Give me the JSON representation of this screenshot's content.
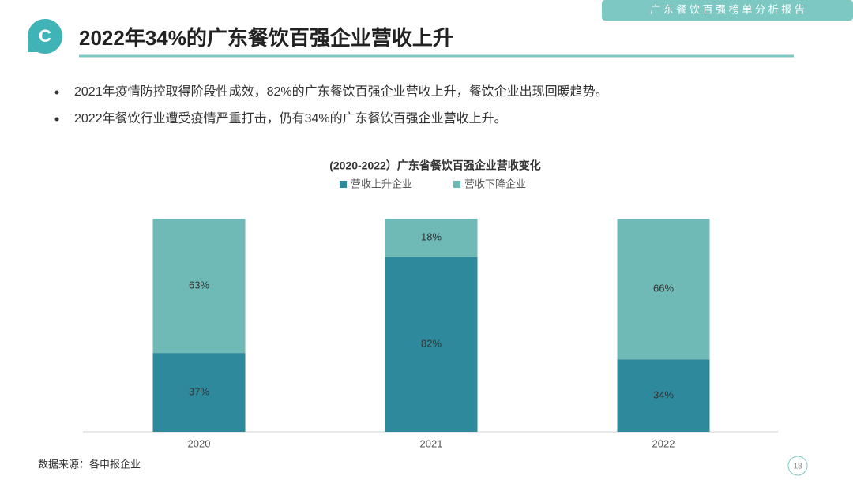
{
  "header": {
    "tag": "广 东 餐 饮 百 强 榜 单 分 析 报 告",
    "logo": "C",
    "title": "2022年34%的广东餐饮百强企业营收上升"
  },
  "bullets": [
    "2021年疫情防控取得阶段性成效，82%的广东餐饮百强企业营收上升，餐饮企业出现回暖趋势。",
    "2022年餐饮行业遭受疫情严重打击，仍有34%的广东餐饮百强企业营收上升。"
  ],
  "chart_data": {
    "type": "stacked_bar",
    "title": "(2020-2022）广东省餐饮百强企业营收变化",
    "categories": [
      "2020",
      "2021",
      "2022"
    ],
    "series": [
      {
        "name": "营收上升企业",
        "color": "#2e899c",
        "values": [
          37,
          82,
          34
        ],
        "value_labels": [
          "37%",
          "82%",
          "34%"
        ]
      },
      {
        "name": "营收下降企业",
        "color": "#6fbab6",
        "values": [
          63,
          18,
          66
        ],
        "value_labels": [
          "63%",
          "18%",
          "66%"
        ]
      }
    ]
  },
  "footer": {
    "source": "数据来源：各申报企业",
    "page": "18"
  }
}
